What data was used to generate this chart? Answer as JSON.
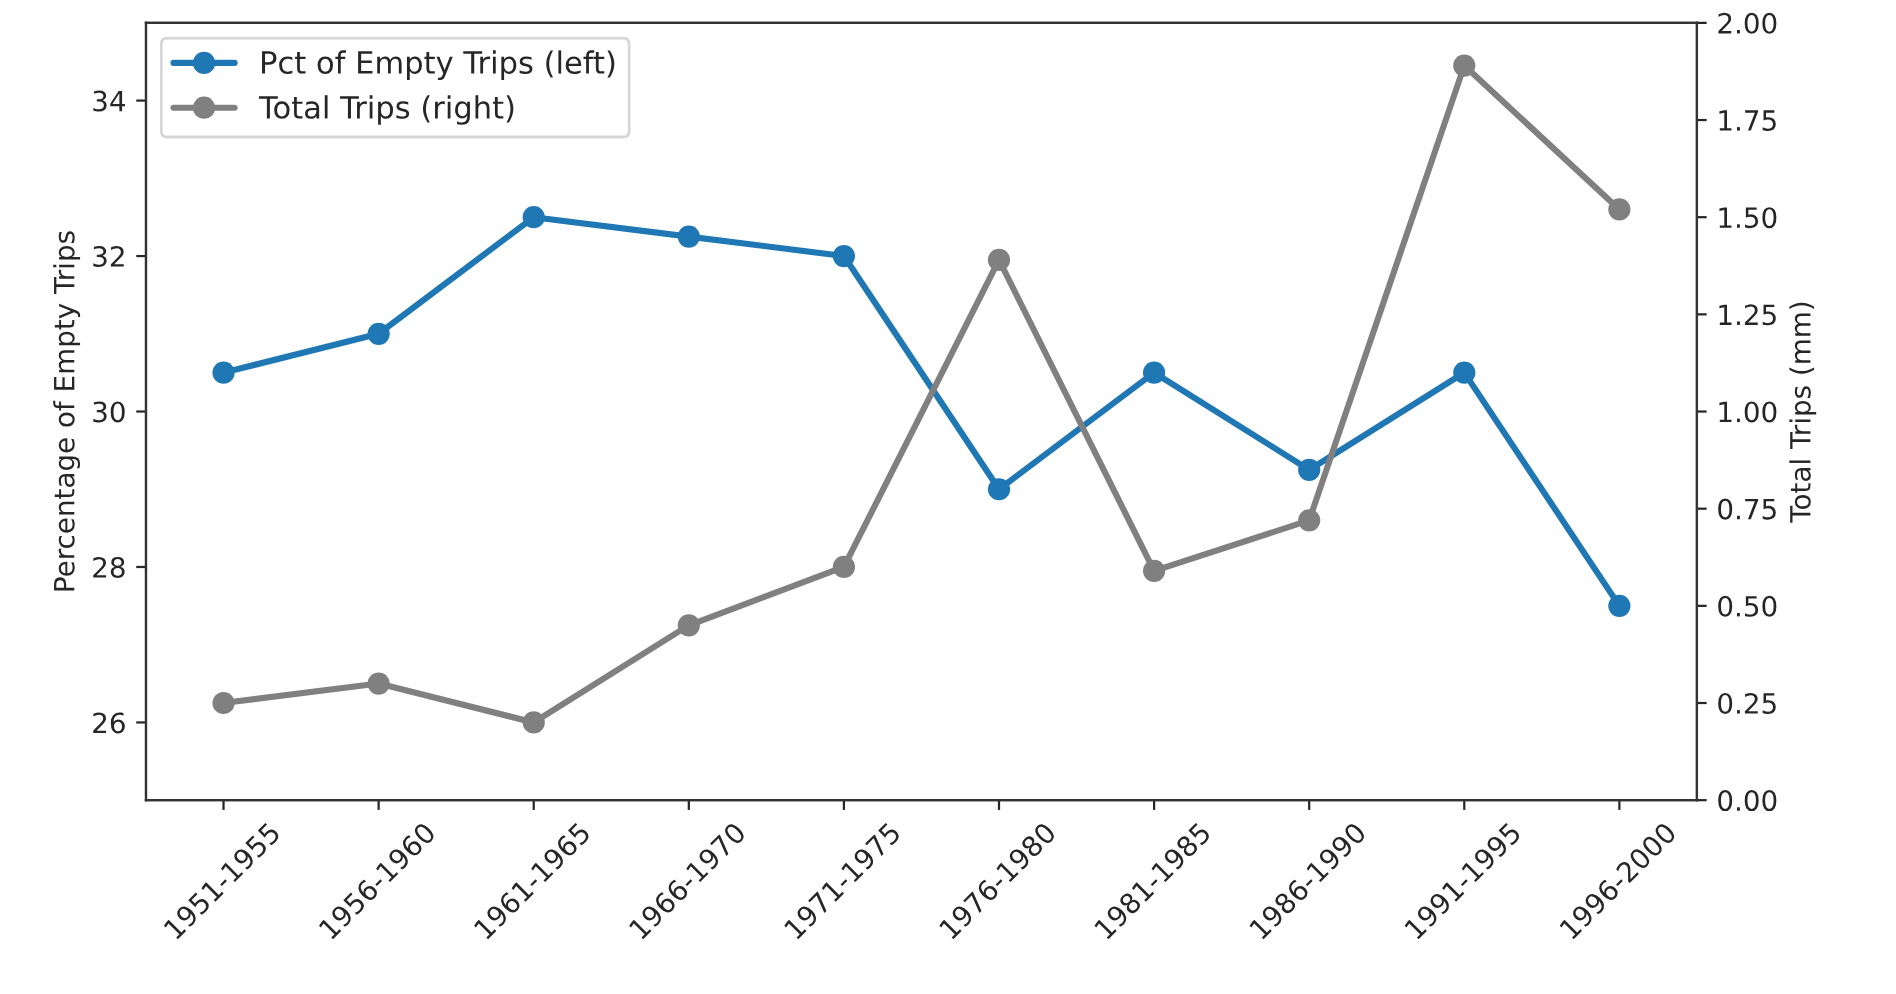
{
  "chart_data": {
    "type": "line",
    "categories": [
      "1951-1955",
      "1956-1960",
      "1961-1965",
      "1966-1970",
      "1971-1975",
      "1976-1980",
      "1981-1985",
      "1986-1990",
      "1991-1995",
      "1996-2000"
    ],
    "series": [
      {
        "name": "Pct of Empty Trips (left)",
        "color": "#1f77b4",
        "values": [
          30.5,
          31.0,
          32.5,
          32.25,
          32.0,
          29.0,
          30.5,
          29.25,
          30.5,
          27.5
        ]
      },
      {
        "name": "Total Trips (right)",
        "color": "#808080",
        "axis": "y2",
        "values": [
          0.25,
          0.3,
          0.2,
          0.45,
          0.6,
          1.39,
          0.59,
          0.72,
          1.89,
          1.52
        ]
      }
    ],
    "ylabel": "Percentage of Empty Trips",
    "y2label": "Total Trips (mm)",
    "ylim": [
      25,
      35
    ],
    "yticks": [
      26,
      28,
      30,
      32,
      34
    ],
    "y2lim": [
      0,
      2
    ],
    "y2ticks": [
      {
        "value": 0,
        "label": "0.00"
      },
      {
        "value": 0.25,
        "label": "0.25"
      },
      {
        "value": 0.5,
        "label": "0.50"
      },
      {
        "value": 0.75,
        "label": "0.75"
      },
      {
        "value": 1,
        "label": "1.00"
      },
      {
        "value": 1.25,
        "label": "1.25"
      },
      {
        "value": 1.5,
        "label": "1.50"
      },
      {
        "value": 1.75,
        "label": "1.75"
      },
      {
        "value": 2,
        "label": "2.00"
      }
    ],
    "legend": "top left",
    "marker": "circle",
    "line_style": "solid"
  }
}
